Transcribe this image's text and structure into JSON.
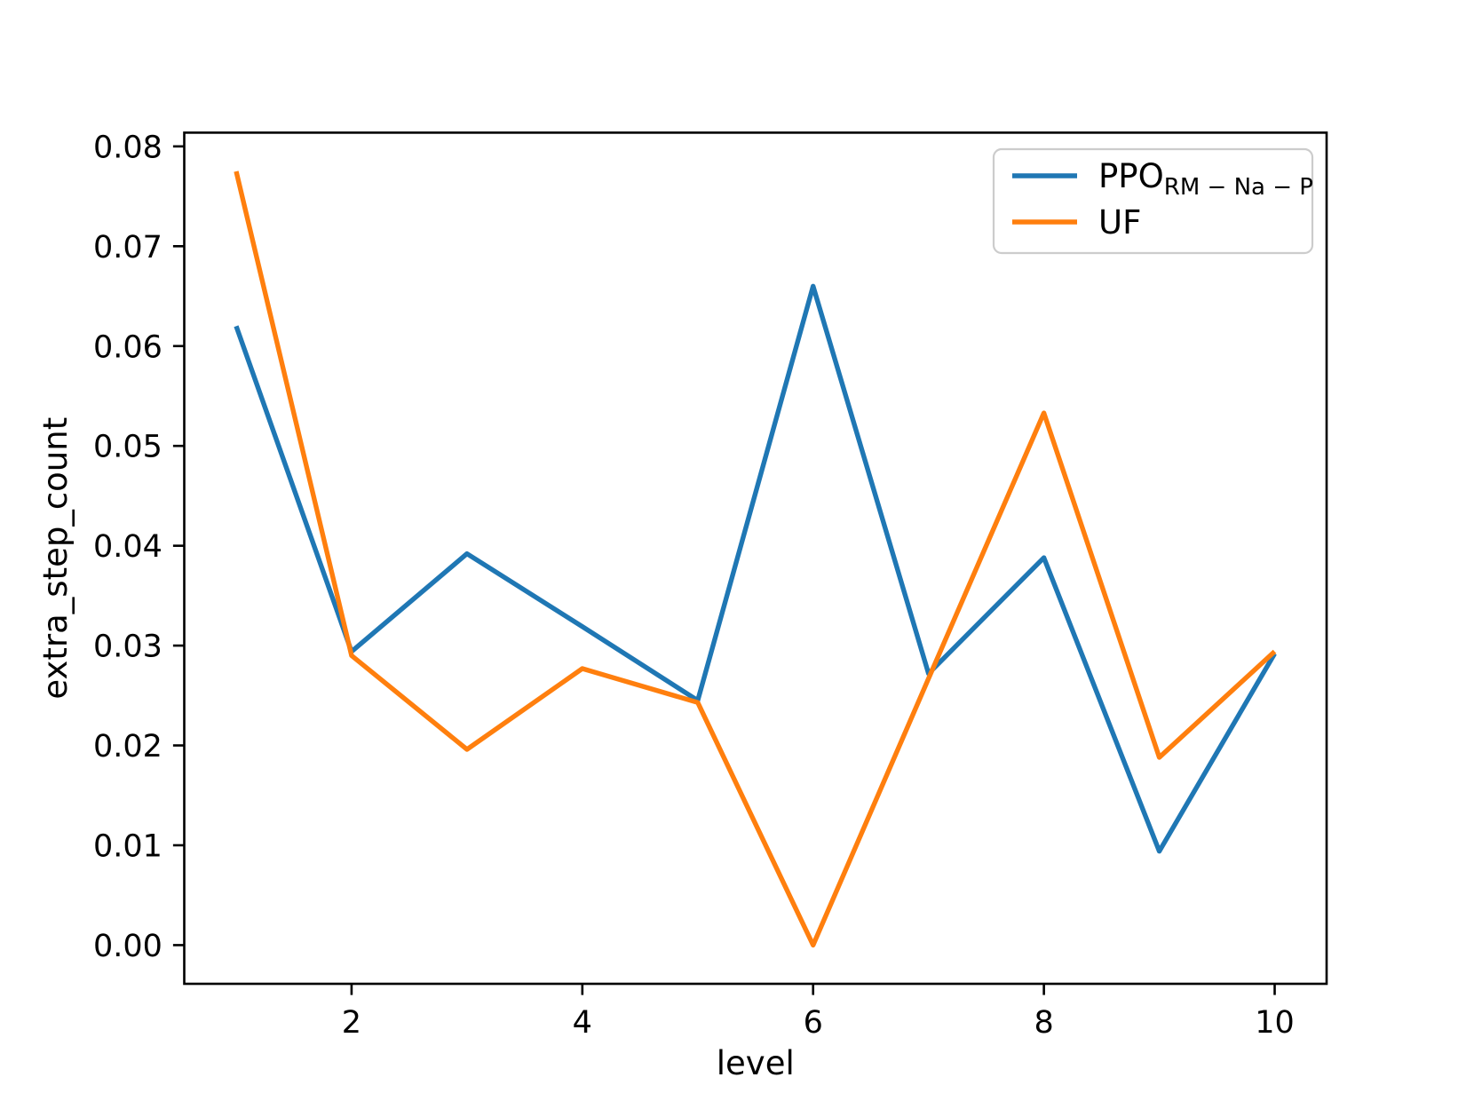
{
  "chart_data": {
    "type": "line",
    "title": "",
    "xlabel": "level",
    "ylabel": "extra_step_count",
    "x": [
      1,
      2,
      3,
      4,
      5,
      6,
      7,
      8,
      9,
      10
    ],
    "series": [
      {
        "name": "PPO_RM-Na-P",
        "legend_base": "PPO",
        "legend_subscript": "RM − Na − P",
        "color": "#1f77b4",
        "values": [
          0.062,
          0.0294,
          0.0392,
          0.0319,
          0.0245,
          0.066,
          0.0272,
          0.0388,
          0.0094,
          0.0292
        ]
      },
      {
        "name": "UF",
        "legend_base": "UF",
        "legend_subscript": "",
        "color": "#ff7f0e",
        "values": [
          0.0775,
          0.029,
          0.0196,
          0.0277,
          0.0243,
          0.0,
          0.0267,
          0.0533,
          0.0188,
          0.0294
        ]
      }
    ],
    "xticks": [
      2,
      4,
      6,
      8,
      10
    ],
    "ytick_labels": [
      "0.00",
      "0.01",
      "0.02",
      "0.03",
      "0.04",
      "0.05",
      "0.06",
      "0.07",
      "0.08"
    ],
    "xlim": [
      0.55,
      10.45
    ],
    "ylim": [
      -0.003875,
      0.081375
    ],
    "grid": false,
    "legend_position": "upper right",
    "axis_color": "#000000",
    "legend_border_color": "#cccccc"
  }
}
